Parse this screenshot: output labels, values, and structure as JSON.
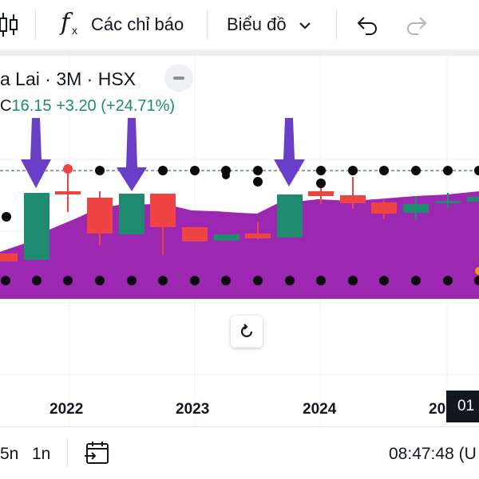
{
  "toolbar": {
    "indicators_label": "Các chỉ báo",
    "chart_type_label": "Biểu đồ",
    "icons": [
      "candlestick-icon",
      "fx-icon",
      "chevron-down-icon",
      "undo-icon",
      "redo-icon"
    ]
  },
  "legend": {
    "title": "a Lai · 3M · HSX",
    "prefix": "C",
    "close": "16.15",
    "change": "+3.20 (+24.71%)"
  },
  "colors": {
    "up": "#1e8a6f",
    "down": "#ef4444",
    "area": "#9c27b0",
    "arrow": "#6a3fc8",
    "dots": "#0b0b0b",
    "text_up": "#1e8a6f"
  },
  "x_axis": {
    "labels": [
      "2022",
      "2023",
      "2024",
      "20"
    ],
    "current_badge": "01"
  },
  "bottom_bar": {
    "interval_5": "5n",
    "interval_1": "1n",
    "time": "08:47:48 (U"
  }
}
